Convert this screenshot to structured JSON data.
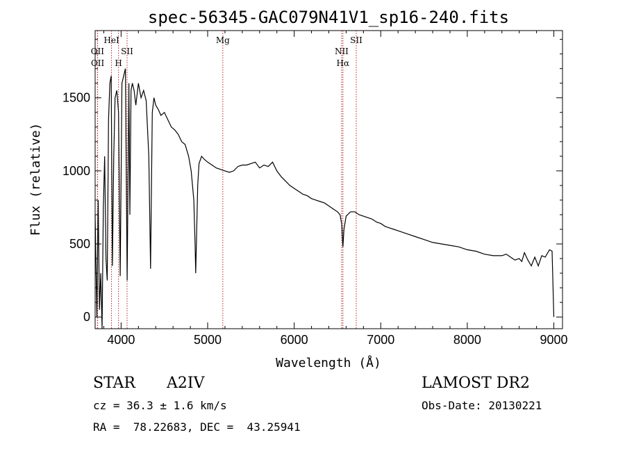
{
  "chart_data": {
    "type": "line",
    "title": "spec-56345-GAC079N41V1_sp16-240.fits",
    "xlabel": "Wavelength (Å)",
    "ylabel": "Flux (relative)",
    "xlim": [
      3700,
      9100
    ],
    "ylim": [
      -80,
      1960
    ],
    "x_ticks": [
      4000,
      5000,
      6000,
      7000,
      8000,
      9000
    ],
    "x_tick_labels": [
      "4000",
      "5000",
      "6000",
      "7000",
      "8000",
      "9000"
    ],
    "y_ticks": [
      0,
      500,
      1000,
      1500
    ],
    "y_tick_labels": [
      "0",
      "500",
      "1000",
      "1500"
    ],
    "grid": false,
    "line_color": "#000000",
    "marker_color": "#b22222",
    "series": [
      {
        "x": [
          3700,
          3720,
          3735,
          3750,
          3765,
          3780,
          3795,
          3810,
          3825,
          3840,
          3855,
          3870,
          3885,
          3900,
          3915,
          3930,
          3950,
          3970,
          3990,
          4010,
          4030,
          4050,
          4070,
          4090,
          4101,
          4115,
          4130,
          4150,
          4170,
          4200,
          4230,
          4260,
          4290,
          4320,
          4340,
          4360,
          4380,
          4400,
          4430,
          4460,
          4500,
          4540,
          4580,
          4620,
          4660,
          4700,
          4740,
          4780,
          4810,
          4840,
          4855,
          4862,
          4870,
          4885,
          4900,
          4930,
          4960,
          5000,
          5050,
          5100,
          5150,
          5200,
          5250,
          5300,
          5350,
          5400,
          5450,
          5500,
          5550,
          5600,
          5650,
          5700,
          5750,
          5800,
          5850,
          5900,
          5950,
          6000,
          6050,
          6100,
          6150,
          6200,
          6250,
          6300,
          6350,
          6400,
          6450,
          6500,
          6530,
          6550,
          6563,
          6575,
          6600,
          6650,
          6700,
          6750,
          6800,
          6850,
          6900,
          6950,
          7000,
          7050,
          7100,
          7150,
          7200,
          7300,
          7400,
          7500,
          7600,
          7700,
          7800,
          7900,
          8000,
          8100,
          8200,
          8300,
          8400,
          8450,
          8500,
          8550,
          8600,
          8630,
          8660,
          8700,
          8740,
          8780,
          8820,
          8860,
          8900,
          8950,
          8980,
          9000
        ],
        "y": [
          700,
          0,
          800,
          50,
          300,
          -80,
          750,
          1100,
          400,
          250,
          1350,
          1600,
          1650,
          350,
          1100,
          1500,
          1550,
          1400,
          280,
          1600,
          1650,
          1700,
          250,
          1600,
          700,
          1550,
          1600,
          1550,
          1450,
          1600,
          1500,
          1550,
          1480,
          1100,
          330,
          1400,
          1500,
          1450,
          1420,
          1380,
          1400,
          1350,
          1300,
          1280,
          1250,
          1200,
          1180,
          1100,
          1000,
          800,
          500,
          300,
          500,
          900,
          1050,
          1100,
          1080,
          1060,
          1040,
          1020,
          1010,
          1000,
          990,
          1000,
          1030,
          1040,
          1040,
          1050,
          1060,
          1020,
          1040,
          1030,
          1060,
          1000,
          960,
          930,
          900,
          880,
          860,
          840,
          830,
          810,
          800,
          790,
          780,
          760,
          740,
          720,
          700,
          630,
          480,
          600,
          690,
          720,
          720,
          700,
          690,
          680,
          670,
          650,
          640,
          620,
          610,
          600,
          590,
          570,
          550,
          530,
          510,
          500,
          490,
          480,
          460,
          450,
          430,
          420,
          420,
          430,
          410,
          390,
          400,
          380,
          440,
          390,
          350,
          410,
          350,
          420,
          410,
          460,
          450,
          0
        ]
      }
    ],
    "line_markers": [
      {
        "label": "OII",
        "x": 3727,
        "row": 2
      },
      {
        "label": "OII",
        "x": 3729,
        "row": 3
      },
      {
        "label": "HeI",
        "x": 3889,
        "row": 1
      },
      {
        "label": "H",
        "x": 3970,
        "row": 3
      },
      {
        "label": "SII",
        "x": 4069,
        "row": 2
      },
      {
        "label": "Mg",
        "x": 5175,
        "row": 1
      },
      {
        "label": "NII",
        "x": 6548,
        "row": 2
      },
      {
        "label": "Hα",
        "x": 6563,
        "row": 3
      },
      {
        "label": "SII",
        "x": 6717,
        "row": 1
      }
    ]
  },
  "info": {
    "object_type": "STAR",
    "spectral_class": "A2IV",
    "survey": "LAMOST DR2",
    "redshift": "cz = 36.3 ± 1.6 km/s",
    "obs_date": "Obs-Date: 20130221",
    "coordinates": "RA =  78.22683, DEC =  43.25941"
  }
}
